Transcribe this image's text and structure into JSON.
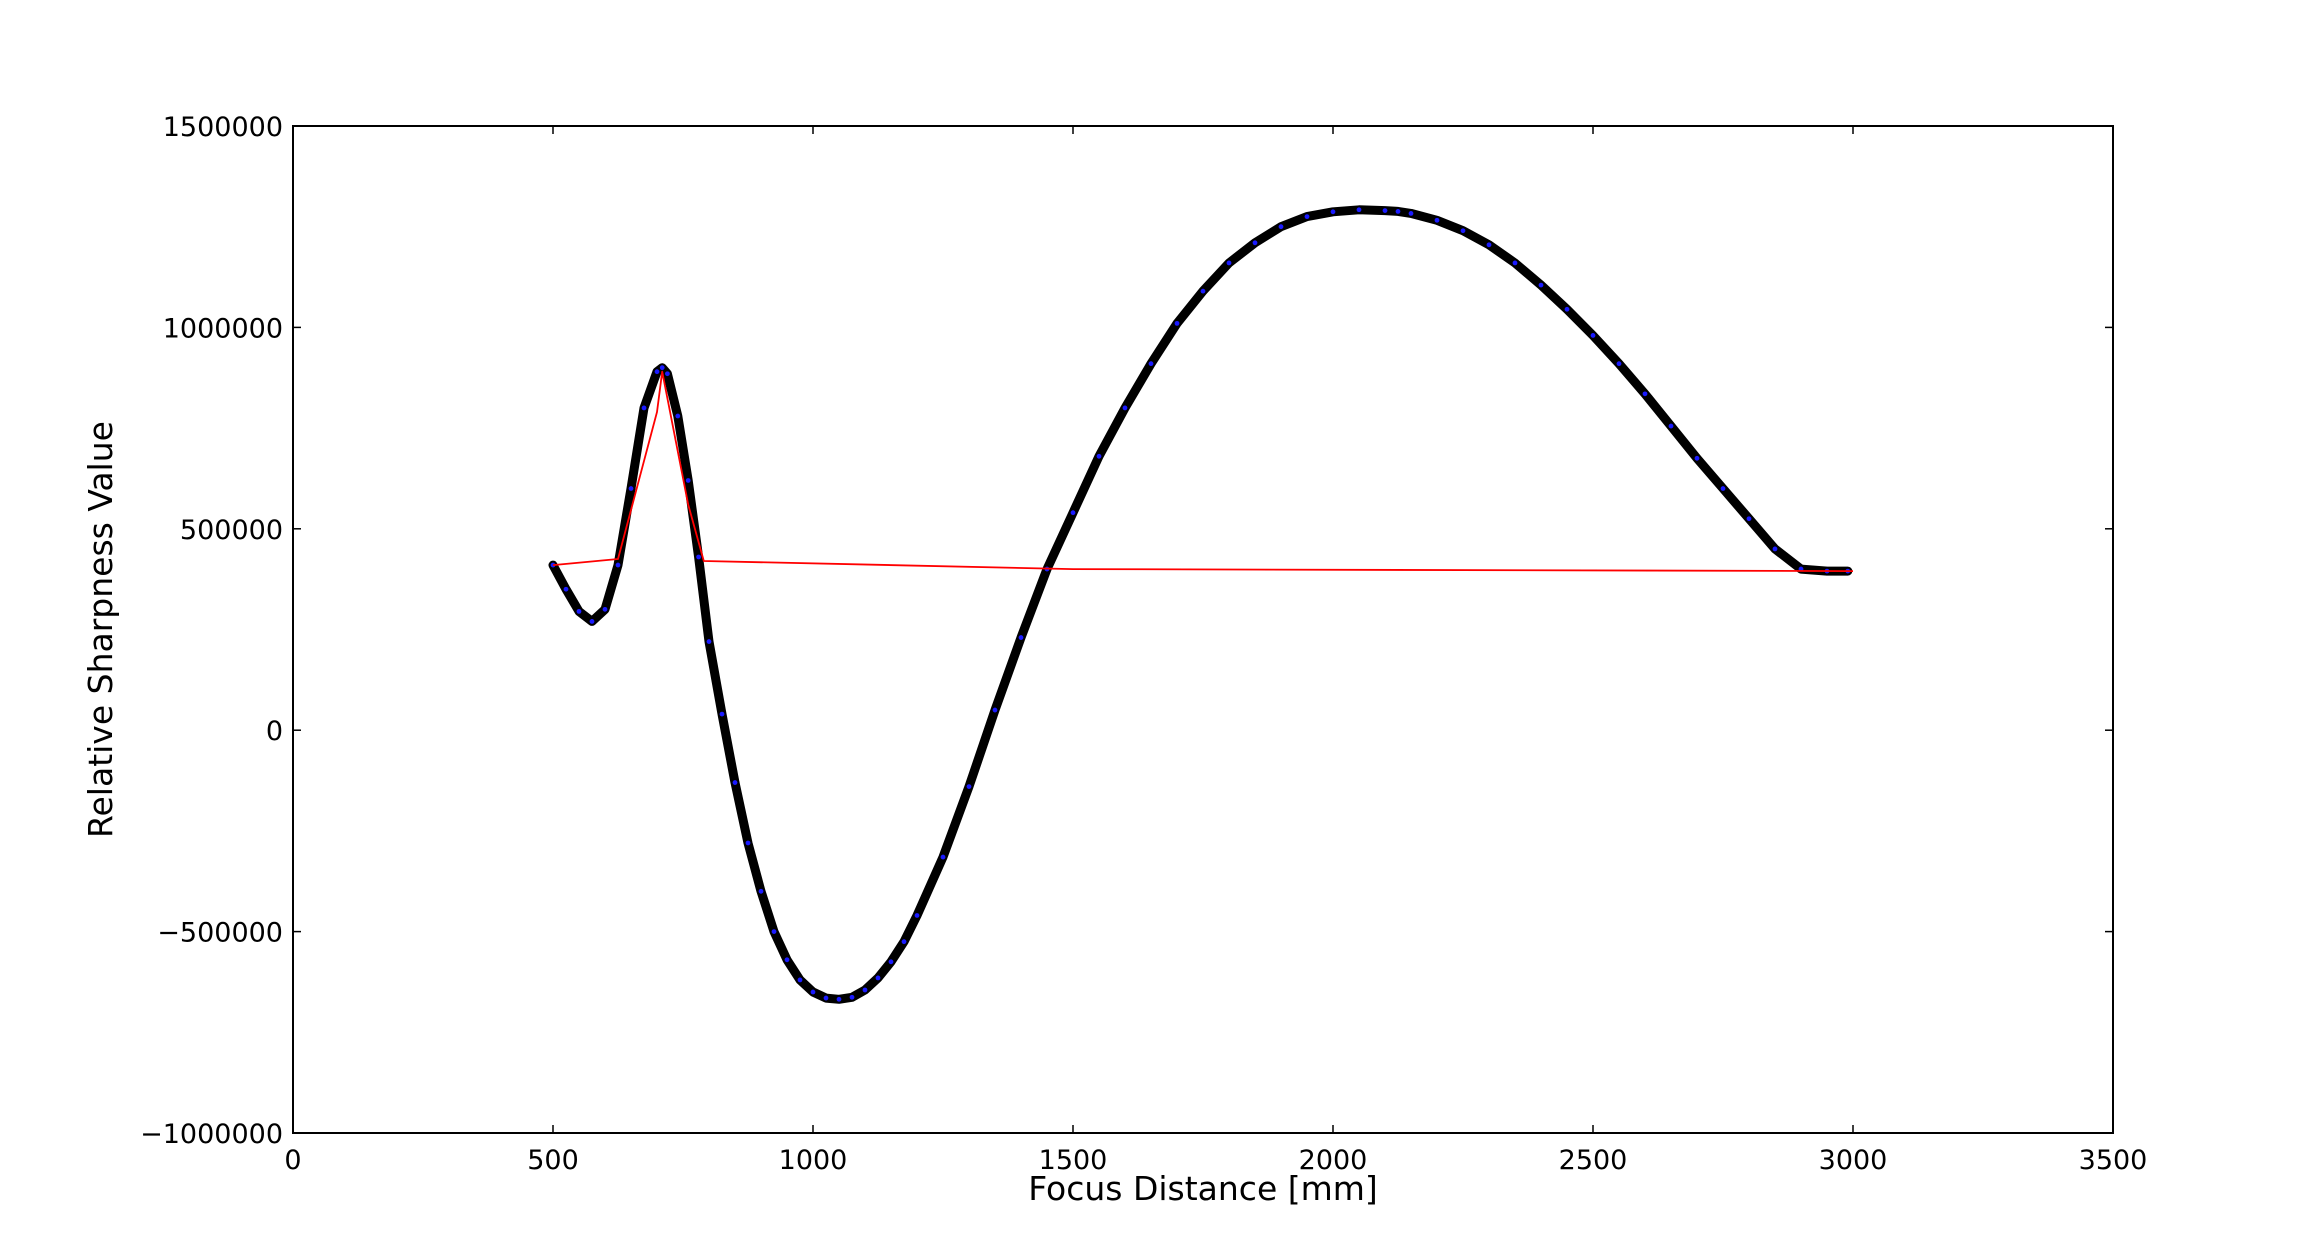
{
  "chart_data": {
    "type": "line",
    "title": "",
    "xlabel": "Focus Distance [mm]",
    "ylabel": "Relative Sharpness Value",
    "xlim": [
      0,
      3500
    ],
    "ylim": [
      -1000000,
      1500000
    ],
    "x_ticks": [
      0,
      500,
      1000,
      1500,
      2000,
      2500,
      3000,
      3500
    ],
    "x_tick_labels": [
      "0",
      "500",
      "1000",
      "1500",
      "2000",
      "2500",
      "3000",
      "3500"
    ],
    "y_ticks": [
      -1000000,
      -500000,
      0,
      500000,
      1000000,
      1500000
    ],
    "y_tick_labels": [
      "−1000000",
      "−500000",
      "0",
      "500000",
      "1000000",
      "1500000"
    ],
    "grid": false,
    "legend": "none",
    "series": [
      {
        "style": "thick black curve with blue points",
        "color": "#000000",
        "marker_color": "#1a1aff",
        "x": [
          500,
          525,
          550,
          575,
          600,
          625,
          650,
          675,
          700,
          710,
          720,
          740,
          760,
          780,
          800,
          825,
          850,
          875,
          900,
          925,
          950,
          975,
          1000,
          1025,
          1050,
          1075,
          1100,
          1125,
          1150,
          1175,
          1200,
          1250,
          1300,
          1350,
          1400,
          1450,
          1500,
          1550,
          1600,
          1650,
          1700,
          1750,
          1800,
          1850,
          1900,
          1950,
          2000,
          2050,
          2100,
          2125,
          2150,
          2200,
          2250,
          2300,
          2350,
          2400,
          2450,
          2500,
          2550,
          2600,
          2650,
          2700,
          2750,
          2800,
          2850,
          2900,
          2950,
          2990
        ],
        "y": [
          410000,
          350000,
          295000,
          270000,
          300000,
          410000,
          600000,
          800000,
          890000,
          900000,
          885000,
          780000,
          620000,
          430000,
          220000,
          40000,
          -130000,
          -280000,
          -400000,
          -500000,
          -570000,
          -620000,
          -650000,
          -665000,
          -668000,
          -663000,
          -645000,
          -615000,
          -575000,
          -525000,
          -460000,
          -315000,
          -140000,
          50000,
          230000,
          400000,
          540000,
          680000,
          800000,
          910000,
          1010000,
          1090000,
          1160000,
          1210000,
          1250000,
          1275000,
          1287000,
          1292000,
          1290000,
          1288000,
          1283000,
          1266000,
          1240000,
          1205000,
          1160000,
          1105000,
          1045000,
          980000,
          910000,
          835000,
          755000,
          675000,
          600000,
          525000,
          450000,
          400000,
          395000,
          395000
        ]
      },
      {
        "style": "thin red polyline",
        "color": "#ff0000",
        "x": [
          500,
          625,
          700,
          710,
          760,
          790,
          1500,
          3000
        ],
        "y": [
          410000,
          425000,
          790000,
          890000,
          560000,
          420000,
          400000,
          395000
        ]
      }
    ]
  }
}
